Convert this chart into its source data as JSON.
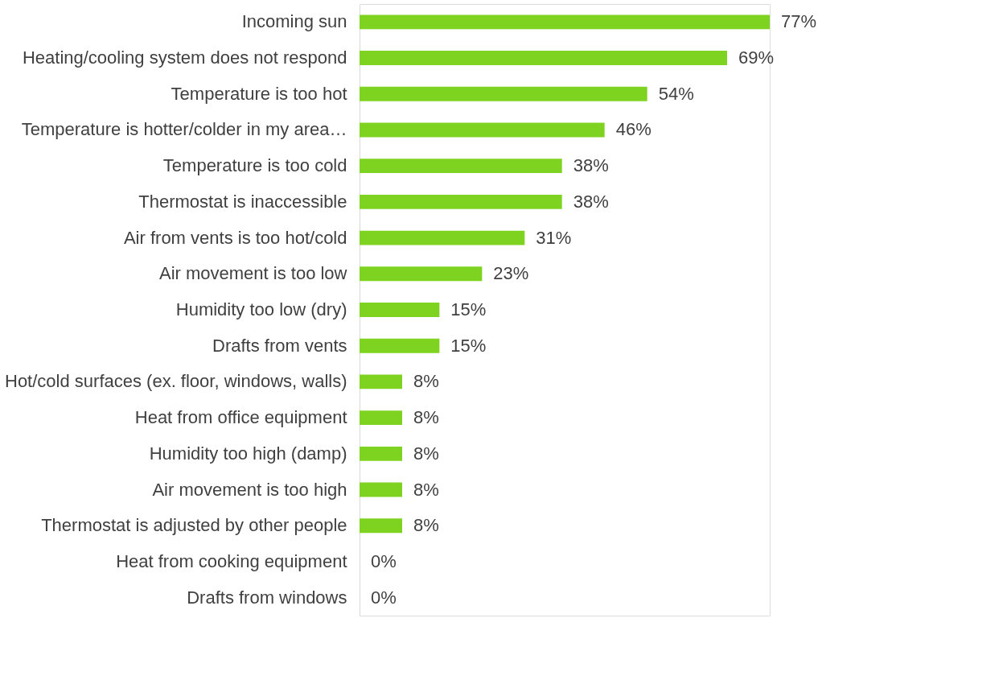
{
  "chart_data": {
    "type": "bar",
    "orientation": "horizontal",
    "categories": [
      "Incoming sun",
      "Heating/cooling system does not respond",
      "Temperature is too hot",
      "Temperature is hotter/colder in my area…",
      "Temperature is too cold",
      "Thermostat is inaccessible",
      "Air from vents is too hot/cold",
      "Air movement is too low",
      "Humidity too low (dry)",
      "Drafts from vents",
      "Hot/cold surfaces (ex. floor, windows, walls)",
      "Heat from office equipment",
      "Humidity too high (damp)",
      "Air movement is too high",
      "Thermostat is adjusted by other people",
      "Heat from cooking equipment",
      "Drafts from windows"
    ],
    "values": [
      77,
      69,
      54,
      46,
      38,
      38,
      31,
      23,
      15,
      15,
      8,
      8,
      8,
      8,
      8,
      0,
      0
    ],
    "value_labels": [
      "77%",
      "69%",
      "54%",
      "46%",
      "38%",
      "38%",
      "31%",
      "23%",
      "15%",
      "15%",
      "8%",
      "8%",
      "8%",
      "8%",
      "8%",
      "0%",
      "0%"
    ],
    "color": "#7ed321"
  }
}
